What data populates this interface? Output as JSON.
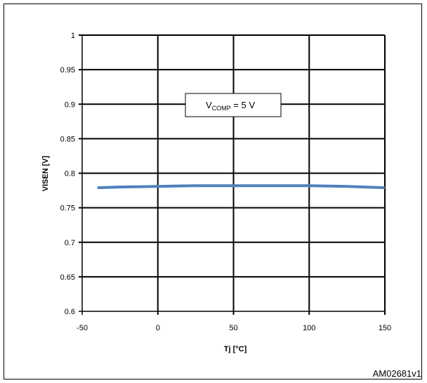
{
  "chart_data": {
    "type": "line",
    "title": "",
    "xlabel": "Tj [°C]",
    "ylabel": "VISEN [V]",
    "xlim": [
      -50,
      150
    ],
    "ylim": [
      0.6,
      1.0
    ],
    "xticks": [
      -50,
      0,
      50,
      100,
      150
    ],
    "yticks": [
      0.6,
      0.65,
      0.7,
      0.75,
      0.8,
      0.85,
      0.9,
      0.95,
      1
    ],
    "grid": true,
    "annotation": {
      "main": "V",
      "sub": "COMP",
      "rest": " = 5 V"
    },
    "series": [
      {
        "color": "#4f81bd",
        "x": [
          -40,
          -25,
          0,
          25,
          50,
          75,
          100,
          125,
          150
        ],
        "y": [
          0.779,
          0.78,
          0.781,
          0.782,
          0.782,
          0.782,
          0.782,
          0.781,
          0.779
        ]
      }
    ]
  },
  "figure_id": "AM02681v1"
}
